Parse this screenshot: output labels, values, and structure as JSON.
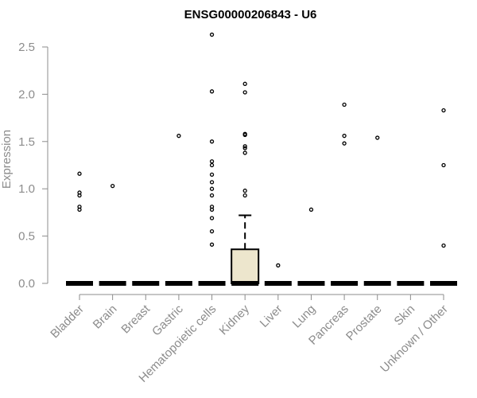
{
  "chart_data": {
    "type": "box",
    "title": "ENSG00000206843 - U6",
    "xlabel": "",
    "ylabel": "Expression",
    "ylim": [
      0,
      2.7
    ],
    "yticks": [
      0.0,
      0.5,
      1.0,
      1.5,
      2.0,
      2.5
    ],
    "ytick_labels": [
      "0.0",
      "0.5",
      "1.0",
      "1.5",
      "2.0",
      "2.5"
    ],
    "grid": false,
    "legend": "none",
    "colors": {
      "box_fill": "#ede6cd",
      "line": "#000000",
      "axis_text": "#8c8c8c"
    },
    "categories": [
      "Bladder",
      "Brain",
      "Breast",
      "Gastric",
      "Hematopoietic cells",
      "Kidney",
      "Liver",
      "Lung",
      "Pancreas",
      "Prostate",
      "Skin",
      "Unknown / Other"
    ],
    "boxes": [
      {
        "category": "Bladder",
        "q1": 0,
        "median": 0,
        "q3": 0,
        "whisker_low": 0,
        "whisker_high": 0,
        "outliers": [
          1.16,
          0.96,
          0.93,
          0.81,
          0.78
        ]
      },
      {
        "category": "Brain",
        "q1": 0,
        "median": 0,
        "q3": 0,
        "whisker_low": 0,
        "whisker_high": 0,
        "outliers": [
          1.03
        ]
      },
      {
        "category": "Breast",
        "q1": 0,
        "median": 0,
        "q3": 0,
        "whisker_low": 0,
        "whisker_high": 0,
        "outliers": []
      },
      {
        "category": "Gastric",
        "q1": 0,
        "median": 0,
        "q3": 0,
        "whisker_low": 0,
        "whisker_high": 0,
        "outliers": [
          1.56
        ]
      },
      {
        "category": "Hematopoietic cells",
        "q1": 0,
        "median": 0,
        "q3": 0,
        "whisker_low": 0,
        "whisker_high": 0,
        "outliers": [
          2.63,
          2.03,
          1.5,
          1.29,
          1.25,
          1.15,
          1.07,
          1.0,
          0.93,
          0.81,
          0.78,
          0.69,
          0.55,
          0.41
        ]
      },
      {
        "category": "Kidney",
        "q1": 0,
        "median": 0,
        "q3": 0.36,
        "whisker_low": 0,
        "whisker_high": 0.72,
        "outliers": [
          2.11,
          2.02,
          1.58,
          1.57,
          1.45,
          1.43,
          1.38,
          0.98,
          0.93
        ]
      },
      {
        "category": "Liver",
        "q1": 0,
        "median": 0,
        "q3": 0,
        "whisker_low": 0,
        "whisker_high": 0,
        "outliers": [
          0.19
        ]
      },
      {
        "category": "Lung",
        "q1": 0,
        "median": 0,
        "q3": 0,
        "whisker_low": 0,
        "whisker_high": 0,
        "outliers": [
          0.78
        ]
      },
      {
        "category": "Pancreas",
        "q1": 0,
        "median": 0,
        "q3": 0,
        "whisker_low": 0,
        "whisker_high": 0,
        "outliers": [
          1.89,
          1.56,
          1.48
        ]
      },
      {
        "category": "Prostate",
        "q1": 0,
        "median": 0,
        "q3": 0,
        "whisker_low": 0,
        "whisker_high": 0,
        "outliers": [
          1.54
        ]
      },
      {
        "category": "Skin",
        "q1": 0,
        "median": 0,
        "q3": 0,
        "whisker_low": 0,
        "whisker_high": 0,
        "outliers": []
      },
      {
        "category": "Unknown / Other",
        "q1": 0,
        "median": 0,
        "q3": 0,
        "whisker_low": 0,
        "whisker_high": 0,
        "outliers": [
          1.83,
          1.25,
          0.4
        ]
      }
    ]
  }
}
